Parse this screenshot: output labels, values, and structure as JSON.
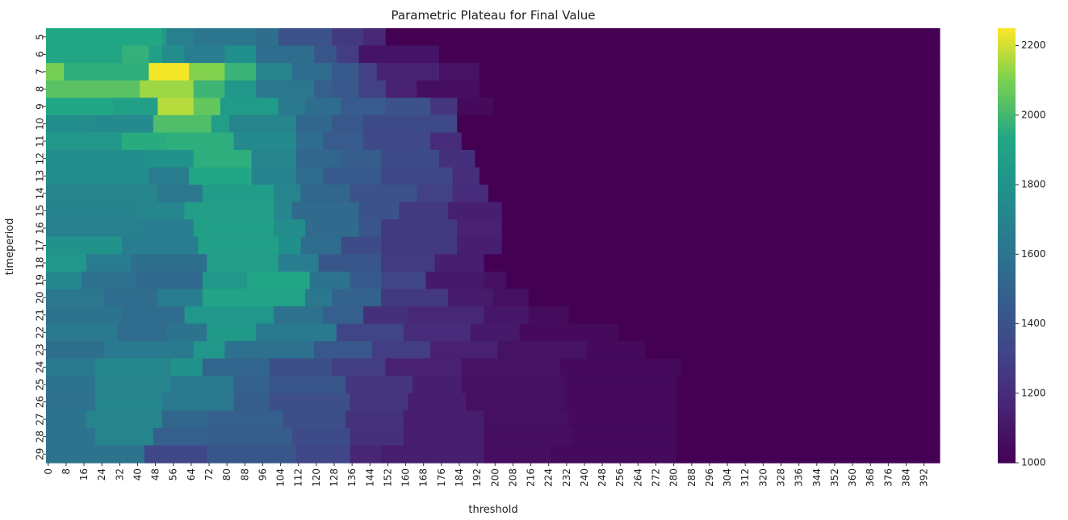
{
  "chart_data": {
    "type": "heatmap",
    "title": "Parametric Plateau for Final Value",
    "xlabel": "threshold",
    "ylabel": "timeperiod",
    "x_values": {
      "start": 0,
      "end": 400,
      "step": 2
    },
    "x_tick_step": 8,
    "y_values": [
      5,
      6,
      7,
      8,
      9,
      10,
      11,
      12,
      13,
      14,
      15,
      16,
      17,
      18,
      19,
      20,
      21,
      22,
      23,
      24,
      25,
      26,
      27,
      28,
      29
    ],
    "colormap": "viridis",
    "colorbar": {
      "min": 1000,
      "max": 2250,
      "ticks": [
        1000,
        1200,
        1400,
        1600,
        1800,
        2000,
        2200
      ]
    },
    "approx_boundary_threshold": [
      152,
      176,
      194,
      200,
      176,
      184,
      186,
      192,
      194,
      198,
      204,
      204,
      204,
      198,
      206,
      216,
      234,
      256,
      268,
      284,
      282,
      282,
      282,
      282,
      282
    ],
    "rows": [
      [
        [
          0,
          52,
          1930
        ],
        [
          52,
          54,
          1840
        ],
        [
          54,
          66,
          1680
        ],
        [
          66,
          94,
          1610
        ],
        [
          94,
          96,
          1550
        ],
        [
          96,
          104,
          1570
        ],
        [
          104,
          128,
          1400
        ],
        [
          128,
          142,
          1260
        ],
        [
          142,
          152,
          1180
        ],
        [
          152,
          400,
          1000
        ]
      ],
      [
        [
          0,
          34,
          1920
        ],
        [
          34,
          46,
          1970
        ],
        [
          46,
          52,
          1880
        ],
        [
          52,
          62,
          1760
        ],
        [
          62,
          80,
          1660
        ],
        [
          80,
          94,
          1780
        ],
        [
          94,
          120,
          1560
        ],
        [
          120,
          130,
          1420
        ],
        [
          130,
          140,
          1280
        ],
        [
          140,
          176,
          1090
        ],
        [
          176,
          400,
          1000
        ]
      ],
      [
        [
          0,
          8,
          2090
        ],
        [
          8,
          46,
          1960
        ],
        [
          46,
          64,
          2240
        ],
        [
          64,
          80,
          2110
        ],
        [
          80,
          94,
          1980
        ],
        [
          94,
          110,
          1700
        ],
        [
          110,
          128,
          1560
        ],
        [
          128,
          140,
          1440
        ],
        [
          140,
          148,
          1300
        ],
        [
          148,
          176,
          1160
        ],
        [
          176,
          194,
          1080
        ],
        [
          194,
          400,
          1000
        ]
      ],
      [
        [
          0,
          42,
          2040
        ],
        [
          42,
          66,
          2140
        ],
        [
          66,
          80,
          1990
        ],
        [
          80,
          94,
          1820
        ],
        [
          94,
          120,
          1620
        ],
        [
          120,
          128,
          1480
        ],
        [
          128,
          140,
          1430
        ],
        [
          140,
          152,
          1300
        ],
        [
          152,
          166,
          1150
        ],
        [
          166,
          194,
          1060
        ],
        [
          194,
          400,
          1000
        ]
      ],
      [
        [
          0,
          30,
          1930
        ],
        [
          30,
          50,
          1880
        ],
        [
          50,
          66,
          2170
        ],
        [
          66,
          78,
          2060
        ],
        [
          78,
          104,
          1850
        ],
        [
          104,
          116,
          1630
        ],
        [
          116,
          132,
          1560
        ],
        [
          132,
          152,
          1450
        ],
        [
          152,
          172,
          1400
        ],
        [
          172,
          184,
          1250
        ],
        [
          184,
          200,
          1040
        ],
        [
          200,
          400,
          1000
        ]
      ],
      [
        [
          0,
          20,
          1760
        ],
        [
          20,
          48,
          1740
        ],
        [
          48,
          74,
          2020
        ],
        [
          74,
          82,
          1870
        ],
        [
          82,
          112,
          1700
        ],
        [
          112,
          128,
          1520
        ],
        [
          128,
          142,
          1430
        ],
        [
          142,
          184,
          1350
        ],
        [
          184,
          400,
          1000
        ]
      ],
      [
        [
          0,
          34,
          1830
        ],
        [
          34,
          54,
          1950
        ],
        [
          54,
          84,
          1960
        ],
        [
          84,
          112,
          1740
        ],
        [
          112,
          124,
          1560
        ],
        [
          124,
          142,
          1450
        ],
        [
          142,
          172,
          1340
        ],
        [
          172,
          186,
          1200
        ],
        [
          186,
          400,
          1000
        ]
      ],
      [
        [
          0,
          44,
          1770
        ],
        [
          44,
          66,
          1800
        ],
        [
          66,
          92,
          1960
        ],
        [
          92,
          112,
          1700
        ],
        [
          112,
          132,
          1520
        ],
        [
          132,
          150,
          1460
        ],
        [
          150,
          176,
          1360
        ],
        [
          176,
          192,
          1220
        ],
        [
          192,
          400,
          1000
        ]
      ],
      [
        [
          0,
          46,
          1760
        ],
        [
          46,
          64,
          1650
        ],
        [
          64,
          92,
          1930
        ],
        [
          92,
          112,
          1690
        ],
        [
          112,
          124,
          1560
        ],
        [
          124,
          150,
          1440
        ],
        [
          150,
          182,
          1330
        ],
        [
          182,
          194,
          1210
        ],
        [
          194,
          400,
          1000
        ]
      ],
      [
        [
          0,
          50,
          1700
        ],
        [
          50,
          70,
          1620
        ],
        [
          70,
          102,
          1860
        ],
        [
          102,
          114,
          1700
        ],
        [
          114,
          136,
          1520
        ],
        [
          136,
          166,
          1400
        ],
        [
          166,
          182,
          1300
        ],
        [
          182,
          198,
          1200
        ],
        [
          198,
          400,
          1000
        ]
      ],
      [
        [
          0,
          40,
          1690
        ],
        [
          40,
          62,
          1720
        ],
        [
          62,
          102,
          1870
        ],
        [
          102,
          110,
          1720
        ],
        [
          110,
          140,
          1540
        ],
        [
          140,
          158,
          1400
        ],
        [
          158,
          180,
          1260
        ],
        [
          180,
          204,
          1140
        ],
        [
          204,
          400,
          1000
        ]
      ],
      [
        [
          0,
          44,
          1680
        ],
        [
          44,
          66,
          1660
        ],
        [
          66,
          102,
          1880
        ],
        [
          102,
          116,
          1760
        ],
        [
          116,
          140,
          1540
        ],
        [
          140,
          150,
          1420
        ],
        [
          150,
          184,
          1260
        ],
        [
          184,
          204,
          1150
        ],
        [
          204,
          400,
          1000
        ]
      ],
      [
        [
          0,
          34,
          1800
        ],
        [
          34,
          68,
          1660
        ],
        [
          68,
          104,
          1880
        ],
        [
          104,
          114,
          1780
        ],
        [
          114,
          132,
          1560
        ],
        [
          132,
          150,
          1360
        ],
        [
          150,
          184,
          1260
        ],
        [
          184,
          204,
          1140
        ],
        [
          204,
          400,
          1000
        ]
      ],
      [
        [
          0,
          18,
          1830
        ],
        [
          18,
          38,
          1650
        ],
        [
          38,
          72,
          1570
        ],
        [
          72,
          104,
          1870
        ],
        [
          104,
          122,
          1660
        ],
        [
          122,
          150,
          1420
        ],
        [
          150,
          174,
          1270
        ],
        [
          174,
          196,
          1140
        ],
        [
          196,
          400,
          1000
        ]
      ],
      [
        [
          0,
          16,
          1720
        ],
        [
          16,
          40,
          1580
        ],
        [
          40,
          70,
          1530
        ],
        [
          70,
          90,
          1830
        ],
        [
          90,
          118,
          1920
        ],
        [
          118,
          136,
          1600
        ],
        [
          136,
          150,
          1440
        ],
        [
          150,
          170,
          1320
        ],
        [
          170,
          196,
          1110
        ],
        [
          196,
          206,
          1070
        ],
        [
          206,
          400,
          1000
        ]
      ],
      [
        [
          0,
          26,
          1620
        ],
        [
          26,
          50,
          1550
        ],
        [
          50,
          70,
          1660
        ],
        [
          70,
          116,
          1900
        ],
        [
          116,
          128,
          1620
        ],
        [
          128,
          150,
          1500
        ],
        [
          150,
          180,
          1260
        ],
        [
          180,
          200,
          1120
        ],
        [
          200,
          216,
          1070
        ],
        [
          216,
          400,
          1000
        ]
      ],
      [
        [
          0,
          34,
          1600
        ],
        [
          34,
          62,
          1560
        ],
        [
          62,
          102,
          1820
        ],
        [
          102,
          124,
          1580
        ],
        [
          124,
          142,
          1480
        ],
        [
          142,
          162,
          1220
        ],
        [
          162,
          196,
          1180
        ],
        [
          196,
          216,
          1100
        ],
        [
          216,
          234,
          1050
        ],
        [
          234,
          400,
          1000
        ]
      ],
      [
        [
          0,
          32,
          1630
        ],
        [
          32,
          54,
          1550
        ],
        [
          54,
          72,
          1600
        ],
        [
          72,
          94,
          1840
        ],
        [
          94,
          130,
          1640
        ],
        [
          130,
          160,
          1320
        ],
        [
          160,
          190,
          1200
        ],
        [
          190,
          212,
          1110
        ],
        [
          212,
          256,
          1040
        ],
        [
          256,
          400,
          1000
        ]
      ],
      [
        [
          0,
          26,
          1570
        ],
        [
          26,
          66,
          1640
        ],
        [
          66,
          80,
          1820
        ],
        [
          80,
          120,
          1580
        ],
        [
          120,
          146,
          1430
        ],
        [
          146,
          172,
          1280
        ],
        [
          172,
          202,
          1150
        ],
        [
          202,
          242,
          1080
        ],
        [
          242,
          268,
          1040
        ],
        [
          268,
          400,
          1000
        ]
      ],
      [
        [
          0,
          22,
          1630
        ],
        [
          22,
          56,
          1720
        ],
        [
          56,
          70,
          1800
        ],
        [
          70,
          100,
          1510
        ],
        [
          100,
          128,
          1380
        ],
        [
          128,
          152,
          1280
        ],
        [
          152,
          186,
          1150
        ],
        [
          186,
          230,
          1080
        ],
        [
          230,
          284,
          1040
        ],
        [
          284,
          400,
          1000
        ]
      ],
      [
        [
          0,
          22,
          1600
        ],
        [
          22,
          56,
          1700
        ],
        [
          56,
          84,
          1640
        ],
        [
          84,
          100,
          1490
        ],
        [
          100,
          134,
          1420
        ],
        [
          134,
          164,
          1250
        ],
        [
          164,
          186,
          1140
        ],
        [
          186,
          232,
          1070
        ],
        [
          232,
          282,
          1040
        ],
        [
          282,
          400,
          1000
        ]
      ],
      [
        [
          0,
          22,
          1580
        ],
        [
          22,
          52,
          1720
        ],
        [
          52,
          84,
          1630
        ],
        [
          84,
          100,
          1470
        ],
        [
          100,
          136,
          1380
        ],
        [
          136,
          162,
          1240
        ],
        [
          162,
          188,
          1130
        ],
        [
          188,
          232,
          1070
        ],
        [
          232,
          282,
          1040
        ],
        [
          282,
          400,
          1000
        ]
      ],
      [
        [
          0,
          18,
          1600
        ],
        [
          18,
          52,
          1700
        ],
        [
          52,
          72,
          1520
        ],
        [
          72,
          106,
          1480
        ],
        [
          106,
          134,
          1380
        ],
        [
          134,
          160,
          1230
        ],
        [
          160,
          196,
          1130
        ],
        [
          196,
          234,
          1070
        ],
        [
          234,
          282,
          1040
        ],
        [
          282,
          400,
          1000
        ]
      ],
      [
        [
          0,
          22,
          1600
        ],
        [
          22,
          48,
          1700
        ],
        [
          48,
          72,
          1480
        ],
        [
          72,
          110,
          1460
        ],
        [
          110,
          136,
          1360
        ],
        [
          136,
          160,
          1220
        ],
        [
          160,
          196,
          1130
        ],
        [
          196,
          236,
          1060
        ],
        [
          236,
          282,
          1040
        ],
        [
          282,
          400,
          1000
        ]
      ],
      [
        [
          0,
          44,
          1600
        ],
        [
          44,
          72,
          1330
        ],
        [
          72,
          112,
          1420
        ],
        [
          112,
          136,
          1330
        ],
        [
          136,
          150,
          1170
        ],
        [
          150,
          196,
          1130
        ],
        [
          196,
          226,
          1060
        ],
        [
          226,
          282,
          1040
        ],
        [
          282,
          400,
          1000
        ]
      ]
    ]
  }
}
